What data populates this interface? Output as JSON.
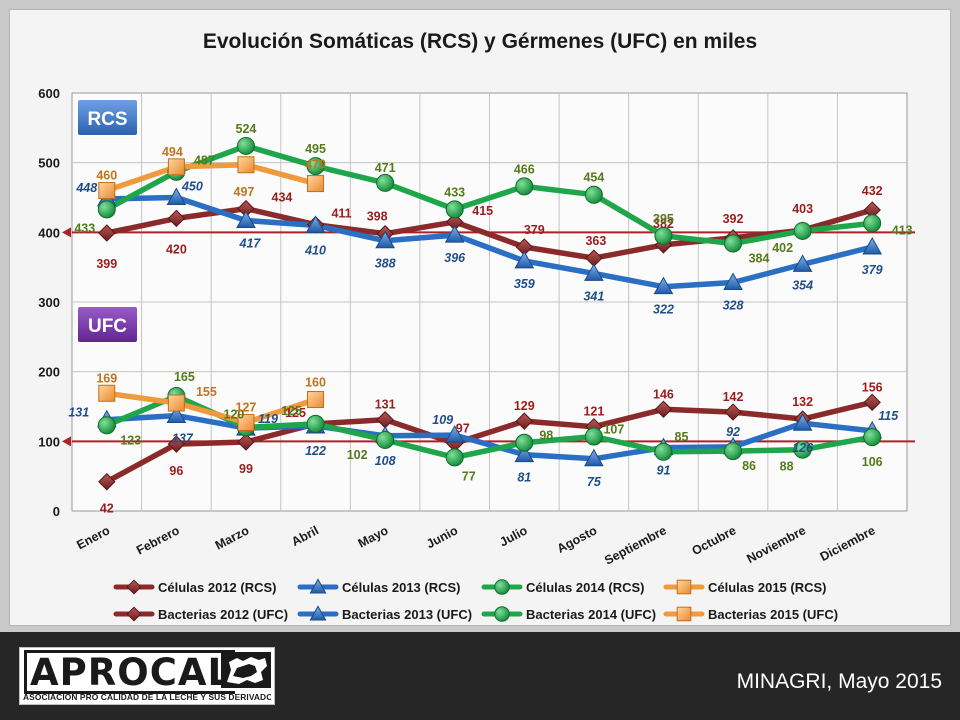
{
  "colors": {
    "s2012": "#8b2a2a",
    "s2013": "#2a6fc4",
    "s2014": "#1fa64a",
    "s2015": "#f09a3e",
    "ref_line": "#b0202a",
    "lbl2012": "#9b1c1c",
    "lbl2013": "#1f4e8a",
    "lbl2014": "#557a1a",
    "lbl2015": "#c0731e",
    "rcs_badge": "#3a74c8",
    "ufc_badge": "#7030a0"
  },
  "chart_data": {
    "type": "line",
    "title": "Evolución Somáticas (RCS) y Gérmenes (UFC) en miles",
    "categories": [
      "Enero",
      "Febrero",
      "Marzo",
      "Abril",
      "Mayo",
      "Junio",
      "Julio",
      "Agosto",
      "Septiembre",
      "Octubre",
      "Noviembre",
      "Diciembre"
    ],
    "ylim": [
      0,
      600
    ],
    "y_ticks": [
      "0",
      "100",
      "200",
      "300",
      "400",
      "500",
      "600"
    ],
    "grid": true,
    "reference_lines": [
      400,
      100
    ],
    "badges": [
      "RCS",
      "UFC"
    ],
    "legend_position": "bottom",
    "series": [
      {
        "name": "Células 2012 (RCS)",
        "year": "2012",
        "marker": "diamond",
        "values": [
          399,
          420,
          434,
          411,
          398,
          415,
          379,
          363,
          382,
          392,
          403,
          432
        ]
      },
      {
        "name": "Células 2013 (RCS)",
        "year": "2013",
        "marker": "triangle",
        "values": [
          448,
          450,
          417,
          410,
          388,
          396,
          359,
          341,
          322,
          328,
          354,
          379
        ]
      },
      {
        "name": "Células 2014 (RCS)",
        "year": "2014",
        "marker": "circle",
        "values": [
          433,
          487,
          524,
          495,
          471,
          433,
          466,
          454,
          395,
          384,
          402,
          413
        ]
      },
      {
        "name": "Células 2015 (RCS)",
        "year": "2015",
        "marker": "square",
        "values": [
          460,
          494,
          497,
          470,
          null,
          null,
          null,
          null,
          null,
          null,
          null,
          null
        ]
      },
      {
        "name": "Bacterias 2012 (UFC)",
        "year": "2012",
        "marker": "diamond",
        "values": [
          42,
          96,
          99,
          125,
          131,
          97,
          129,
          121,
          146,
          142,
          132,
          156
        ]
      },
      {
        "name": "Bacterias 2013 (UFC)",
        "year": "2013",
        "marker": "triangle",
        "values": [
          131,
          137,
          119,
          122,
          108,
          109,
          81,
          75,
          91,
          92,
          126,
          115
        ]
      },
      {
        "name": "Bacterias 2014 (UFC)",
        "year": "2014",
        "marker": "circle",
        "values": [
          123,
          165,
          120,
          125,
          102,
          77,
          98,
          107,
          85,
          86,
          88,
          106
        ]
      },
      {
        "name": "Bacterias 2015 (UFC)",
        "year": "2015",
        "marker": "square",
        "values": [
          169,
          155,
          127,
          160,
          null,
          null,
          null,
          null,
          null,
          null,
          null,
          null
        ]
      }
    ]
  },
  "footer": {
    "logo_word": "APROCAL",
    "logo_tagline": "ASOCIACION PRO CALIDAD DE LA LECHE Y SUS DERIVADOS",
    "source": "MINAGRI, Mayo 2015"
  }
}
